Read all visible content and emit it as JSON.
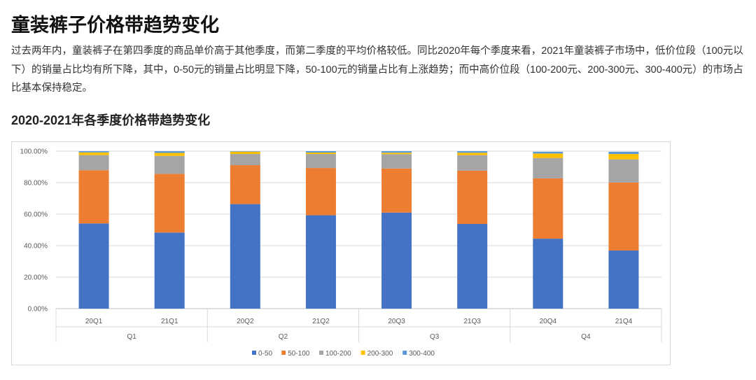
{
  "title": "童装裤子价格带趋势变化",
  "paragraph": "过去两年内，童装裤子在第四季度的商品单价高于其他季度，而第二季度的平均价格较低。同比2020年每个季度来看，2021年童装裤子市场中，低价位段（100元以下）的销量占比均有所下降，其中，0-50元的销量占比明显下降，50-100元的销量占比有上涨趋势；而中高价位段（100-200元、200-300元、300-400元）的市场占比基本保持稳定。",
  "chart_title": "2020-2021年各季度价格带趋势变化",
  "chart_data": {
    "type": "bar",
    "stacked": true,
    "categories": [
      "20Q1",
      "21Q1",
      "20Q2",
      "21Q2",
      "20Q3",
      "21Q3",
      "20Q4",
      "21Q4"
    ],
    "groups": [
      "Q1",
      "Q2",
      "Q3",
      "Q4"
    ],
    "yticks": [
      "0.00%",
      "20.00%",
      "40.00%",
      "60.00%",
      "80.00%",
      "100.00%"
    ],
    "ylim": [
      0,
      100
    ],
    "grid": true,
    "legend_position": "bottom",
    "series": [
      {
        "name": "0-50",
        "color": "#4472c4",
        "values": [
          54.1,
          48.3,
          66.4,
          59.3,
          61.0,
          53.8,
          44.4,
          36.9
        ]
      },
      {
        "name": "50-100",
        "color": "#ed7d31",
        "values": [
          33.8,
          37.3,
          24.7,
          30.0,
          28.0,
          33.8,
          38.3,
          43.2
        ]
      },
      {
        "name": "100-200",
        "color": "#a5a5a5",
        "values": [
          9.6,
          11.4,
          7.1,
          8.9,
          9.1,
          9.9,
          13.0,
          14.7
        ]
      },
      {
        "name": "200-300",
        "color": "#ffc000",
        "values": [
          1.7,
          1.9,
          1.5,
          0.9,
          0.9,
          1.5,
          2.8,
          3.4
        ]
      },
      {
        "name": "300-400",
        "color": "#5b9bd5",
        "values": [
          0.8,
          1.1,
          0.3,
          0.9,
          1.0,
          1.0,
          1.1,
          1.4
        ]
      }
    ]
  }
}
